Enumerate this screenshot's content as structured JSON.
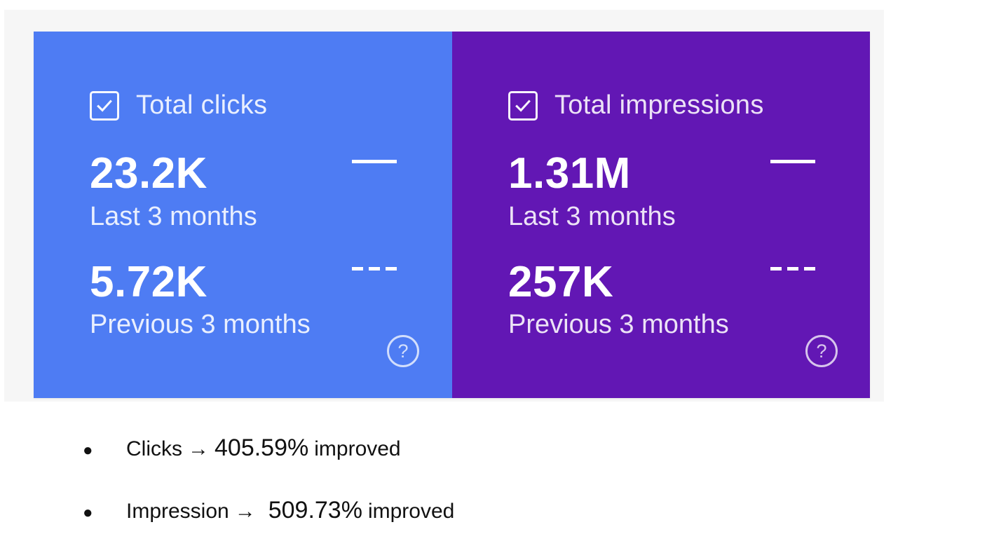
{
  "cards": [
    {
      "title": "Total clicks",
      "checked": true,
      "color": "#4e7cf3",
      "current_value": "23.2K",
      "current_label": "Last 3 months",
      "previous_value": "5.72K",
      "previous_label": "Previous 3 months",
      "icons": [
        "checkbox-checked-icon",
        "solid-line-legend-icon",
        "dashed-line-legend-icon",
        "help-icon"
      ]
    },
    {
      "title": "Total impressions",
      "checked": true,
      "color": "#6217b4",
      "current_value": "1.31M",
      "current_label": "Last 3 months",
      "previous_value": "257K",
      "previous_label": "Previous 3 months",
      "icons": [
        "checkbox-checked-icon",
        "solid-line-legend-icon",
        "dashed-line-legend-icon",
        "help-icon"
      ]
    }
  ],
  "bullets": [
    {
      "label": "Clicks",
      "arrow": "→",
      "percent": "405.59%",
      "suffix": "improved"
    },
    {
      "label": "Impression",
      "arrow": "→",
      "percent": "509.73%",
      "suffix": "improved"
    }
  ]
}
